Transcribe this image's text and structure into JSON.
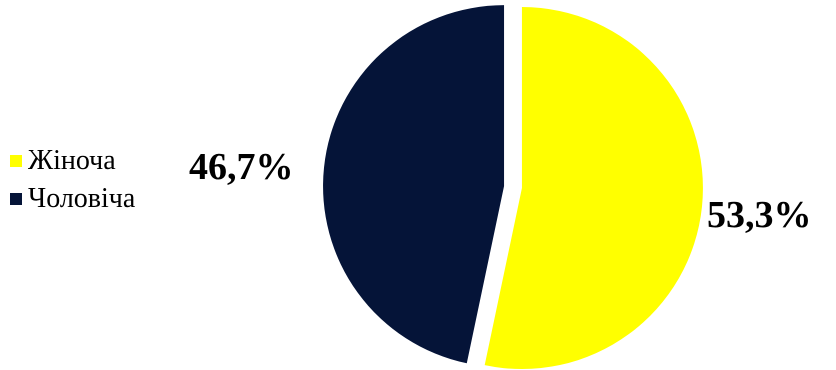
{
  "chart_data": {
    "type": "pie",
    "categories": [
      "Жіноча",
      "Чоловіча"
    ],
    "values": [
      53.3,
      46.7
    ],
    "data_labels": [
      "53,3%",
      "46,7%"
    ],
    "colors": [
      "#FFFF00",
      "#051438"
    ],
    "legend": {
      "placement": "left",
      "entries": [
        "Жіноча",
        "Чоловіча"
      ]
    },
    "start_angle_deg": 0,
    "direction": "clockwise",
    "exploded": true
  }
}
